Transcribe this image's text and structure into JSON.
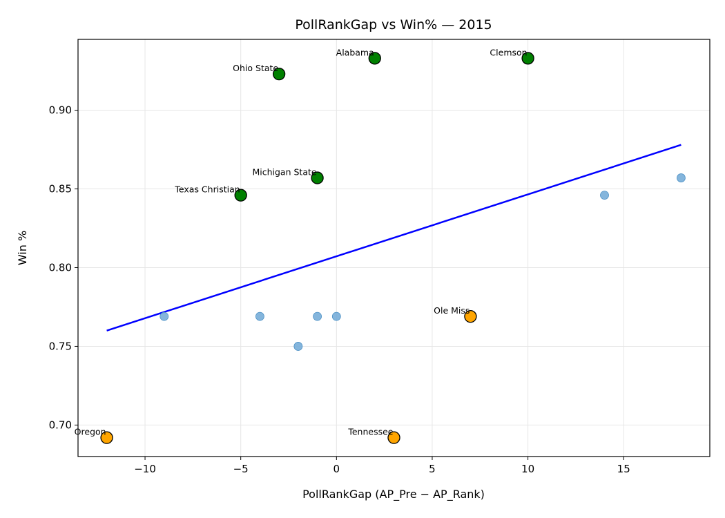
{
  "chart_data": {
    "type": "scatter",
    "title": "PollRankGap vs Win%  — 2015",
    "xlabel": "PollRankGap (AP_Pre − AP_Rank)",
    "ylabel": "Win %",
    "xlim": [
      -13.5,
      19.5
    ],
    "ylim": [
      0.68,
      0.945
    ],
    "xticks": [
      -10,
      -5,
      0,
      5,
      10,
      15
    ],
    "xtick_labels": [
      "−10",
      "−5",
      "0",
      "5",
      "10",
      "15"
    ],
    "yticks": [
      0.7,
      0.75,
      0.8,
      0.85,
      0.9
    ],
    "ytick_labels": [
      "0.70",
      "0.75",
      "0.80",
      "0.85",
      "0.90"
    ],
    "grid": true,
    "colors": {
      "background_points": "#6fa8d6",
      "high_points": "#008000",
      "low_points": "#ffa500",
      "trend_line": "#0000ff",
      "point_edge": "#000000"
    },
    "background_points": [
      {
        "x": -9,
        "y": 0.769
      },
      {
        "x": -4,
        "y": 0.769
      },
      {
        "x": -2,
        "y": 0.75
      },
      {
        "x": -1,
        "y": 0.769
      },
      {
        "x": 0,
        "y": 0.769
      },
      {
        "x": 14,
        "y": 0.846
      },
      {
        "x": 18,
        "y": 0.857
      }
    ],
    "high_points": [
      {
        "x": -3,
        "y": 0.923,
        "label": "Ohio State"
      },
      {
        "x": 2,
        "y": 0.933,
        "label": "Alabama"
      },
      {
        "x": 10,
        "y": 0.933,
        "label": "Clemson"
      },
      {
        "x": -1,
        "y": 0.857,
        "label": "Michigan State"
      },
      {
        "x": -5,
        "y": 0.846,
        "label": "Texas Christian"
      }
    ],
    "low_points": [
      {
        "x": 7,
        "y": 0.769,
        "label": "Ole Miss"
      },
      {
        "x": -12,
        "y": 0.692,
        "label": "Oregon"
      },
      {
        "x": 3,
        "y": 0.692,
        "label": "Tennessee"
      }
    ],
    "trend_line": {
      "x": [
        -12,
        18
      ],
      "y": [
        0.76,
        0.878
      ]
    }
  }
}
